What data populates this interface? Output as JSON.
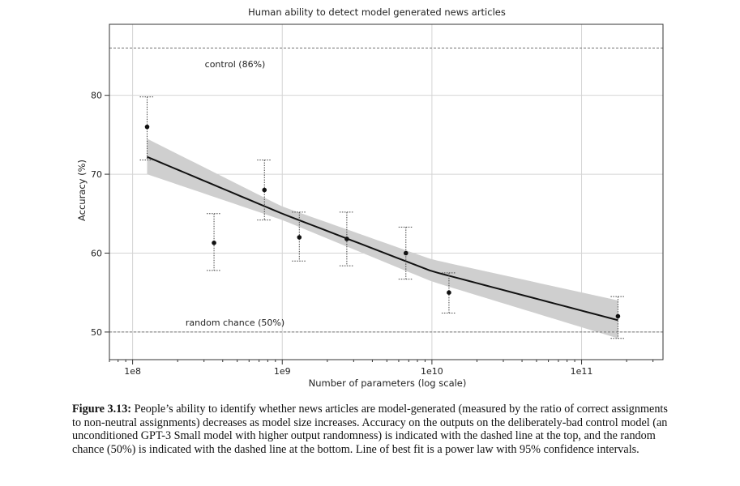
{
  "chart_data": {
    "type": "scatter",
    "title": "Human ability to detect model generated news articles",
    "xlabel": "Number of parameters (log scale)",
    "ylabel": "Accuracy (%)",
    "x_scale": "log",
    "xlim": [
      70000000,
      350000000000
    ],
    "ylim": [
      46.5,
      89
    ],
    "x_ticks": [
      {
        "value": 100000000,
        "label": "1e8"
      },
      {
        "value": 1000000000,
        "label": "1e9"
      },
      {
        "value": 10000000000,
        "label": "1e10"
      },
      {
        "value": 100000000000,
        "label": "1e11"
      }
    ],
    "y_ticks": [
      {
        "value": 50,
        "label": "50"
      },
      {
        "value": 60,
        "label": "60"
      },
      {
        "value": 70,
        "label": "70"
      },
      {
        "value": 80,
        "label": "80"
      }
    ],
    "grid": true,
    "points": [
      {
        "x": 125000000,
        "y": 76,
        "lo": 71.8,
        "hi": 79.8
      },
      {
        "x": 350000000,
        "y": 61.3,
        "lo": 57.8,
        "hi": 65
      },
      {
        "x": 760000000,
        "y": 68,
        "lo": 64.2,
        "hi": 71.8
      },
      {
        "x": 1300000000,
        "y": 62,
        "lo": 59,
        "hi": 65.2
      },
      {
        "x": 2700000000,
        "y": 61.8,
        "lo": 58.4,
        "hi": 65.2
      },
      {
        "x": 6700000000,
        "y": 60,
        "lo": 56.7,
        "hi": 63.3
      },
      {
        "x": 13000000000,
        "y": 55,
        "lo": 52.4,
        "hi": 57.5
      },
      {
        "x": 175000000000,
        "y": 52,
        "lo": 49.2,
        "hi": 54.5
      }
    ],
    "fit": {
      "x": [
        125000000,
        1000000000,
        10000000000,
        175000000000
      ],
      "y": [
        72.2,
        65,
        57.7,
        51.5
      ],
      "ci_lo": [
        70,
        64.2,
        56.4,
        49.2
      ],
      "ci_hi": [
        74.5,
        65.9,
        59.2,
        54
      ]
    },
    "reference_lines": [
      {
        "y": 86,
        "label": "control (86%)"
      },
      {
        "y": 50,
        "label": "random chance (50%)"
      }
    ]
  },
  "caption": {
    "label": "Figure 3.13:",
    "text": "People’s ability to identify whether news articles are model-generated (measured by the ratio of correct assignments to non-neutral assignments) decreases as model size increases. Accuracy on the outputs on the deliberately-bad control model (an unconditioned GPT-3 Small model with higher output randomness) is indicated with the dashed line at the top, and the random chance (50%) is indicated with the dashed line at the bottom. Line of best fit is a power law with 95% confidence intervals."
  }
}
